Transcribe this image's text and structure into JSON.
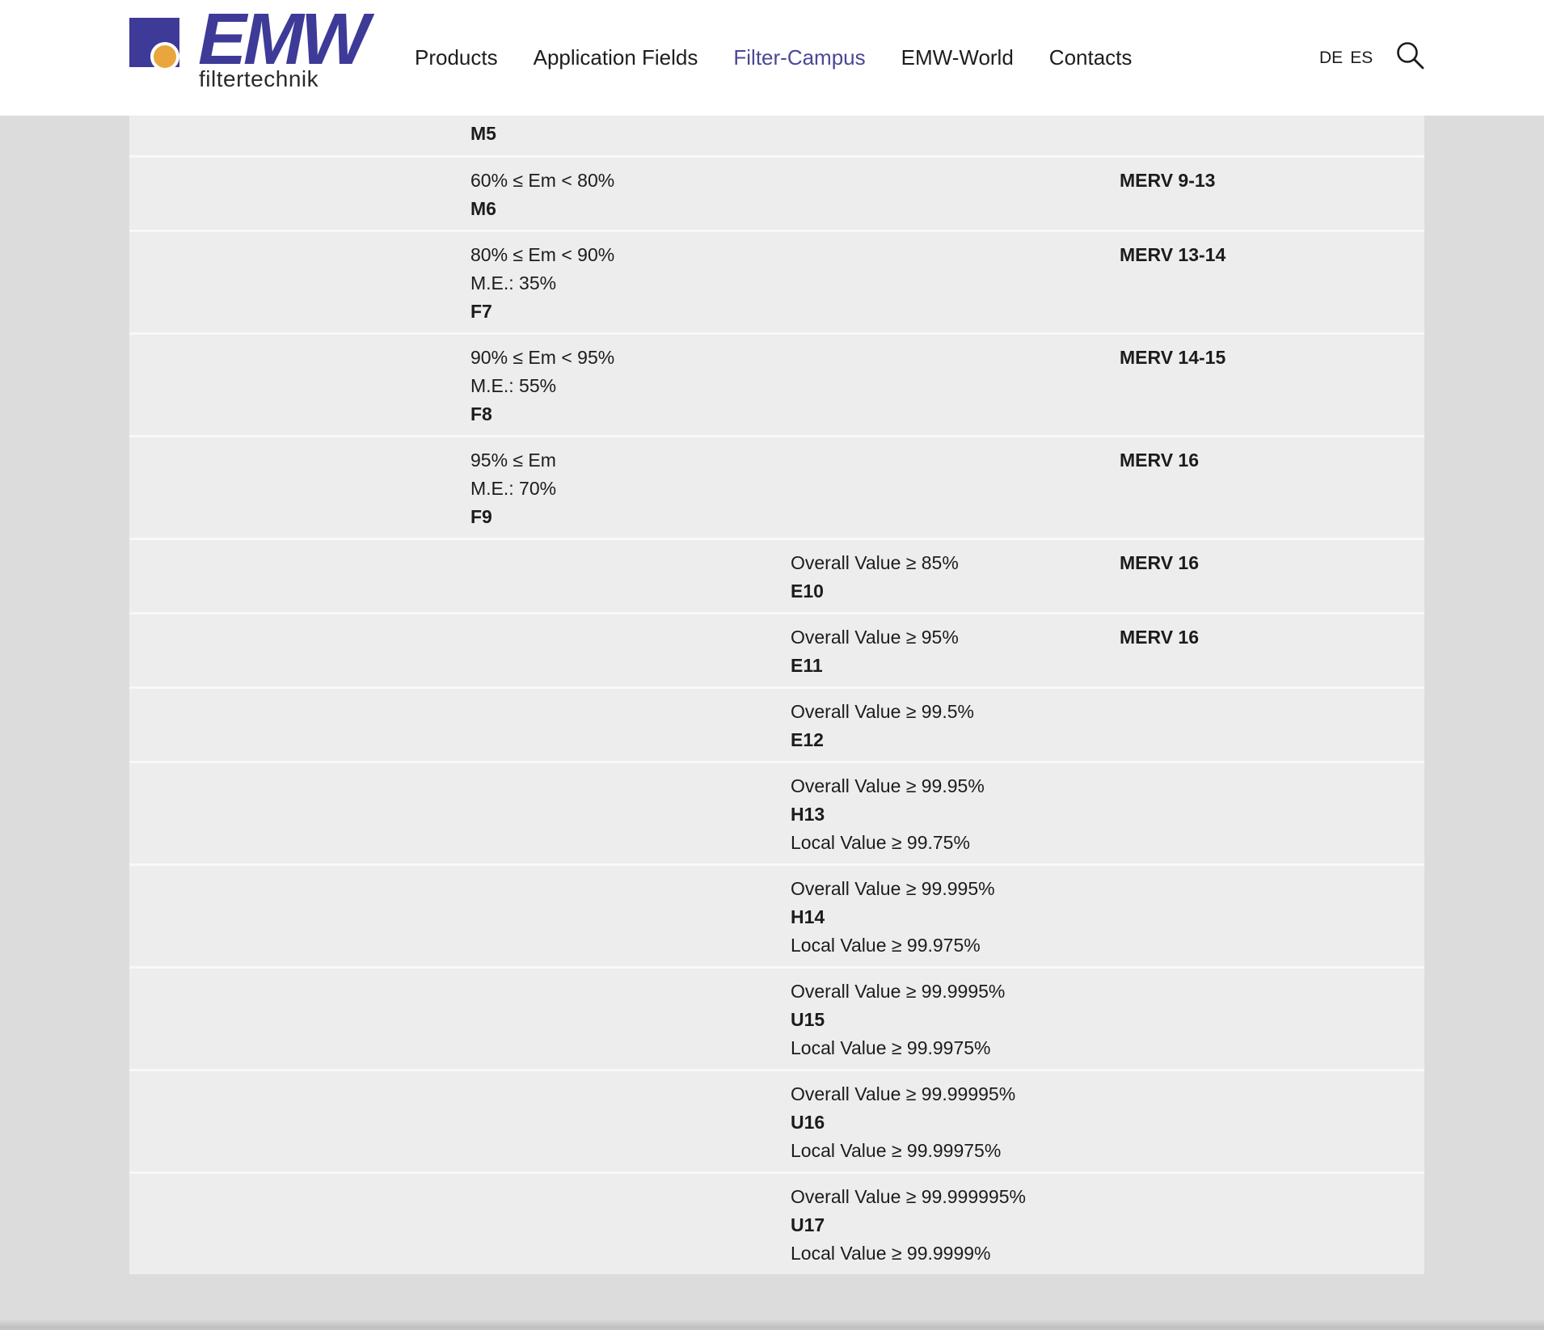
{
  "header": {
    "logo": {
      "text": "EMW",
      "subtext": "filtertechnik"
    },
    "nav": [
      {
        "label": "Products",
        "active": false
      },
      {
        "label": "Application Fields",
        "active": false
      },
      {
        "label": "Filter-Campus",
        "active": true
      },
      {
        "label": "EMW-World",
        "active": false
      },
      {
        "label": "Contacts",
        "active": false
      }
    ],
    "languages": [
      "DE",
      "ES"
    ],
    "accent_color": "#4a4796",
    "logo_purple": "#3e3a97",
    "logo_orange": "#e9a63c"
  },
  "table": {
    "rows": [
      {
        "class": "M5",
        "column": 2,
        "partial": true,
        "lines": [
          {
            "text": "M5",
            "bold": true
          }
        ],
        "merv": ""
      },
      {
        "class": "M6",
        "column": 2,
        "lines": [
          {
            "text": "60% ≤ Em < 80%"
          },
          {
            "text": "M6",
            "bold": true
          }
        ],
        "merv": "MERV 9-13"
      },
      {
        "class": "F7",
        "column": 2,
        "lines": [
          {
            "text": "80% ≤ Em < 90%"
          },
          {
            "text": "M.E.: 35%"
          },
          {
            "text": "F7",
            "bold": true
          }
        ],
        "merv": "MERV 13-14"
      },
      {
        "class": "F8",
        "column": 2,
        "lines": [
          {
            "text": "90% ≤ Em < 95%"
          },
          {
            "text": "M.E.: 55%"
          },
          {
            "text": "F8",
            "bold": true
          }
        ],
        "merv": "MERV 14-15"
      },
      {
        "class": "F9",
        "column": 2,
        "lines": [
          {
            "text": "95% ≤ Em"
          },
          {
            "text": "M.E.: 70%"
          },
          {
            "text": "F9",
            "bold": true
          }
        ],
        "merv": "MERV 16"
      },
      {
        "class": "E10",
        "column": 3,
        "lines": [
          {
            "text": "Overall Value ≥ 85%"
          },
          {
            "text": "E10",
            "bold": true
          }
        ],
        "merv": "MERV 16"
      },
      {
        "class": "E11",
        "column": 3,
        "lines": [
          {
            "text": "Overall Value ≥ 95%"
          },
          {
            "text": "E11",
            "bold": true
          }
        ],
        "merv": "MERV 16"
      },
      {
        "class": "E12",
        "column": 3,
        "lines": [
          {
            "text": "Overall Value ≥ 99.5%"
          },
          {
            "text": "E12",
            "bold": true
          }
        ],
        "merv": ""
      },
      {
        "class": "H13",
        "column": 3,
        "lines": [
          {
            "text": "Overall Value ≥ 99.95%"
          },
          {
            "text": "H13",
            "bold": true
          },
          {
            "text": "Local Value ≥ 99.75%"
          }
        ],
        "merv": ""
      },
      {
        "class": "H14",
        "column": 3,
        "lines": [
          {
            "text": "Overall Value ≥ 99.995%"
          },
          {
            "text": "H14",
            "bold": true
          },
          {
            "text": "Local Value ≥ 99.975%"
          }
        ],
        "merv": ""
      },
      {
        "class": "U15",
        "column": 3,
        "lines": [
          {
            "text": "Overall Value ≥ 99.9995%"
          },
          {
            "text": "U15",
            "bold": true
          },
          {
            "text": "Local Value ≥ 99.9975%"
          }
        ],
        "merv": ""
      },
      {
        "class": "U16",
        "column": 3,
        "lines": [
          {
            "text": "Overall Value ≥ 99.99995%"
          },
          {
            "text": "U16",
            "bold": true
          },
          {
            "text": "Local Value ≥ 99.99975%"
          }
        ],
        "merv": ""
      },
      {
        "class": "U17",
        "column": 3,
        "lines": [
          {
            "text": "Overall Value ≥ 99.999995%"
          },
          {
            "text": "U17",
            "bold": true
          },
          {
            "text": "Local Value ≥ 99.9999%"
          }
        ],
        "merv": ""
      }
    ]
  }
}
